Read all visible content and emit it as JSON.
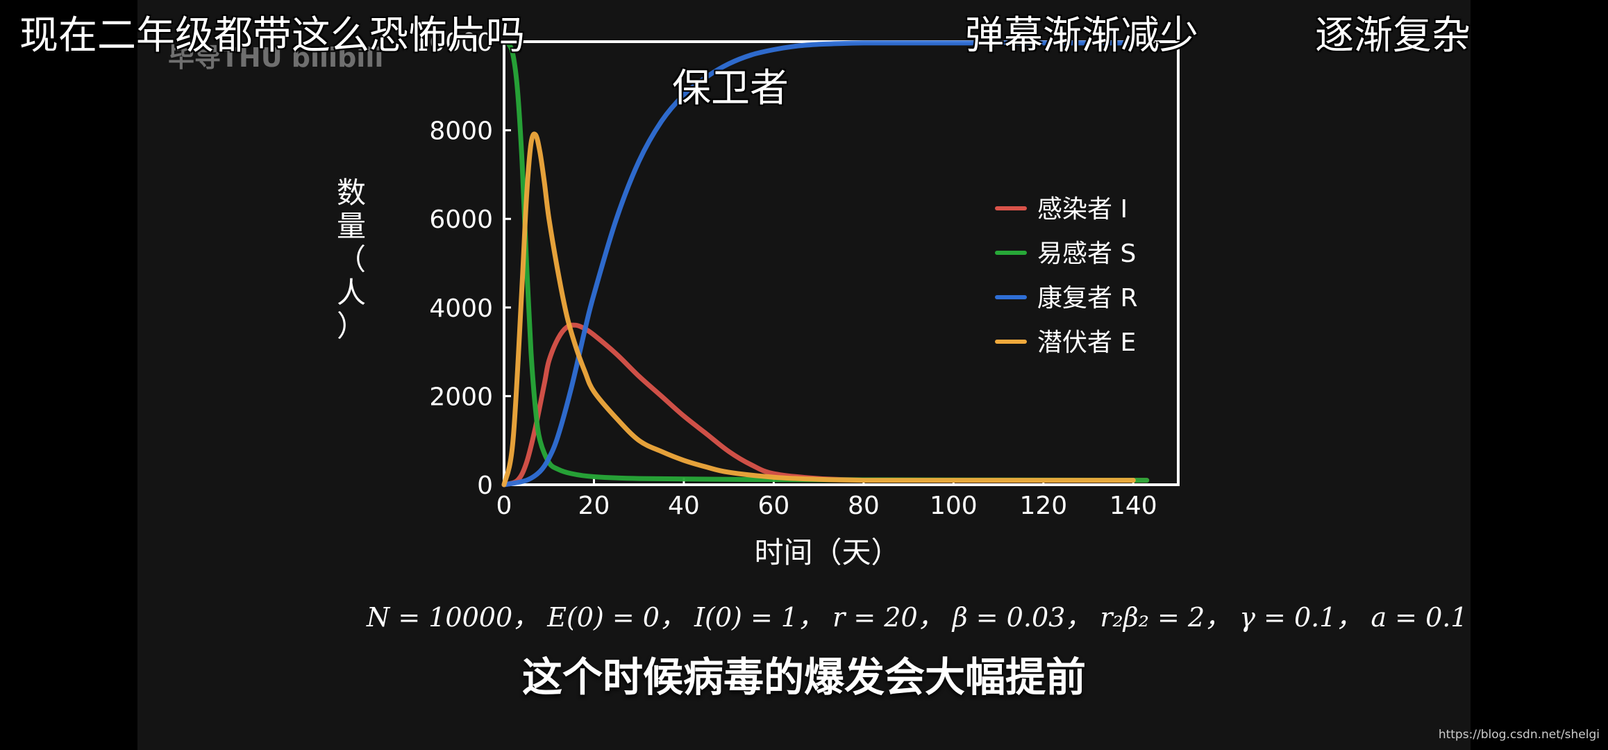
{
  "danmaku": [
    {
      "text": "现在二年级都带这么恐怖片吗"
    },
    {
      "text": "保卫者"
    },
    {
      "text": "弹幕渐渐减少"
    },
    {
      "text": "逐渐复杂"
    }
  ],
  "watermark": {
    "text": "毕导THU bilibili"
  },
  "params_text": "N = 10000， E(0) = 0， I(0) = 1， r = 20， β = 0.03， r₂β₂ = 2， γ = 0.1， a = 0.1",
  "subtitle": "这个时候病毒的爆发会大幅提前",
  "source_url": "https://blog.csdn.net/shelgi",
  "chart_data": {
    "type": "line",
    "title": "",
    "xlabel": "时间（天）",
    "ylabel": "数量（人）",
    "xlim": [
      0,
      150
    ],
    "ylim": [
      0,
      10000
    ],
    "xticks": [
      0,
      20,
      40,
      60,
      80,
      100,
      120,
      140
    ],
    "yticks": [
      0,
      2000,
      4000,
      6000,
      8000,
      10000
    ],
    "grid": false,
    "legend_position": "right",
    "series": [
      {
        "name": "感染者 I",
        "color": "#d9534a",
        "x": [
          0,
          3,
          5,
          7,
          9,
          10,
          12,
          14,
          16,
          18,
          20,
          25,
          30,
          35,
          40,
          45,
          50,
          55,
          60,
          70,
          80,
          100,
          120,
          143
        ],
        "y": [
          0,
          100,
          500,
          1300,
          2300,
          2800,
          3300,
          3560,
          3600,
          3520,
          3380,
          2950,
          2450,
          2000,
          1550,
          1150,
          750,
          450,
          250,
          140,
          110,
          100,
          100,
          100
        ]
      },
      {
        "name": "易感者 S",
        "color": "#27a838",
        "x": [
          0,
          1,
          2,
          3,
          4,
          5,
          6,
          7,
          8,
          10,
          12,
          15,
          20,
          30,
          50,
          80,
          143
        ],
        "y": [
          10000,
          9950,
          9700,
          8900,
          7300,
          5000,
          3000,
          1700,
          1000,
          500,
          350,
          250,
          180,
          140,
          120,
          110,
          100
        ]
      },
      {
        "name": "康复者 R",
        "color": "#2f6fd6",
        "x": [
          0,
          5,
          8,
          10,
          12,
          15,
          18,
          20,
          25,
          30,
          35,
          40,
          45,
          50,
          55,
          60,
          65,
          70,
          75,
          80,
          90,
          100,
          120,
          140
        ],
        "y": [
          0,
          100,
          300,
          600,
          1100,
          2200,
          3500,
          4300,
          6000,
          7300,
          8200,
          8800,
          9200,
          9500,
          9700,
          9820,
          9900,
          9940,
          9960,
          9970,
          9970,
          9970,
          9970,
          9970
        ]
      },
      {
        "name": "潜伏者 E",
        "color": "#f0a93c",
        "x": [
          0,
          2,
          4,
          5,
          6,
          7,
          8,
          9,
          10,
          12,
          14,
          16,
          18,
          20,
          25,
          30,
          35,
          40,
          45,
          50,
          60,
          70,
          80,
          100,
          120,
          140
        ],
        "y": [
          0,
          1000,
          4500,
          6500,
          7700,
          7900,
          7500,
          6800,
          6000,
          4800,
          3800,
          3100,
          2550,
          2100,
          1500,
          1000,
          750,
          550,
          400,
          280,
          170,
          120,
          100,
          100,
          100,
          100
        ]
      }
    ]
  }
}
